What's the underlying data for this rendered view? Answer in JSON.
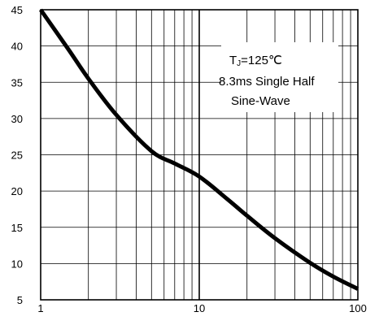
{
  "chart_data": {
    "type": "line",
    "title": "",
    "xlabel": "",
    "ylabel": "",
    "x_scale": "log",
    "xlim": [
      1,
      100
    ],
    "ylim": [
      5,
      45
    ],
    "grid": true,
    "x_ticks": [
      {
        "value": 1,
        "label": "1"
      },
      {
        "value": 10,
        "label": "10"
      },
      {
        "value": 100,
        "label": "100"
      }
    ],
    "y_ticks": [
      {
        "value": 5,
        "label": "5"
      },
      {
        "value": 10,
        "label": "10"
      },
      {
        "value": 15,
        "label": "15"
      },
      {
        "value": 20,
        "label": "20"
      },
      {
        "value": 25,
        "label": "25"
      },
      {
        "value": 30,
        "label": "30"
      },
      {
        "value": 35,
        "label": "35"
      },
      {
        "value": 40,
        "label": "40"
      },
      {
        "value": 45,
        "label": "45"
      }
    ],
    "series": [
      {
        "name": "",
        "color": "#000000",
        "x": [
          1,
          1.5,
          2,
          3,
          5,
          7,
          10,
          15,
          20,
          30,
          50,
          70,
          100
        ],
        "y": [
          45,
          39.5,
          35.5,
          30.5,
          25.5,
          23.8,
          22,
          18.9,
          16.6,
          13.5,
          10.1,
          8.2,
          6.5
        ]
      }
    ],
    "annotations": {
      "line1_main": "T",
      "line1_sub": "J",
      "line1_rest": "=125℃",
      "line2": "8.3ms Single Half",
      "line3": "Sine-Wave"
    }
  }
}
